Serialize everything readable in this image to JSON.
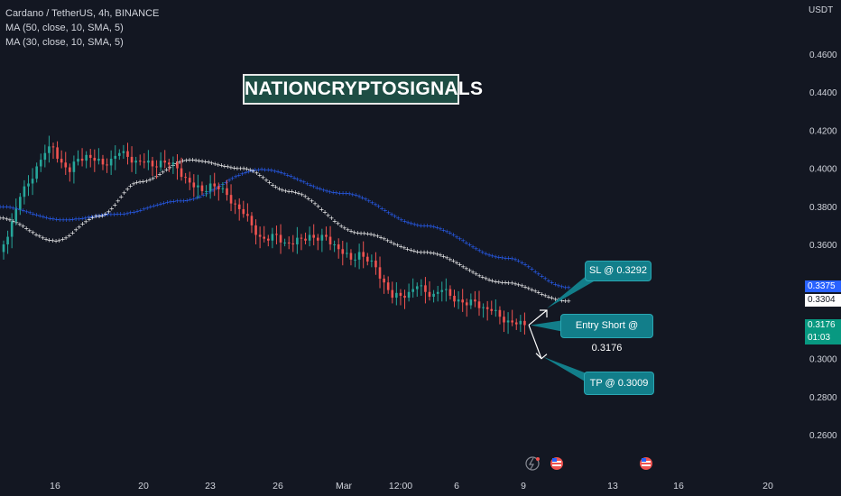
{
  "header": {
    "symbol_line": "Cardano / TetherUS, 4h, BINANCE",
    "ma1_line": "MA (50, close, 10, SMA, 5)",
    "ma2_line": "MA (30, close, 10, SMA, 5)"
  },
  "watermark": "NATIONCRYPTOSIGNALS",
  "price_unit": "USDT",
  "callouts": {
    "sl": "SL @ 0.3292",
    "entry": "Entry Short @ 0.3176",
    "tp": "TP @ 0.3009"
  },
  "badges": {
    "ma1_value": "0.3375",
    "ma2_value": "0.3304",
    "last_price": "0.3176",
    "countdown": "01:03"
  },
  "colors": {
    "background": "#131722",
    "up": "#26a69a",
    "down": "#ef5350",
    "ma_blue": "#2962ff",
    "ma_white": "#ffffff",
    "callout": "#127e8a"
  },
  "chart_data": {
    "type": "candlestick",
    "timeframe": "4h",
    "y_ticks": [
      "0.4600",
      "0.4400",
      "0.4200",
      "0.4000",
      "0.3800",
      "0.3600",
      "0.3000",
      "0.2800",
      "0.2600"
    ],
    "x_ticks": [
      "16",
      "20",
      "23",
      "26",
      "Mar",
      "12:00",
      "6",
      "9",
      "13",
      "16",
      "20"
    ],
    "ylim": [
      0.245,
      0.47
    ],
    "close_series": [
      0.36,
      0.372,
      0.385,
      0.392,
      0.401,
      0.408,
      0.411,
      0.403,
      0.398,
      0.405,
      0.407,
      0.404,
      0.402,
      0.405,
      0.408,
      0.406,
      0.404,
      0.403,
      0.401,
      0.404,
      0.402,
      0.4,
      0.395,
      0.39,
      0.388,
      0.392,
      0.389,
      0.386,
      0.381,
      0.376,
      0.37,
      0.364,
      0.362,
      0.365,
      0.361,
      0.36,
      0.363,
      0.365,
      0.362,
      0.364,
      0.36,
      0.355,
      0.352,
      0.356,
      0.351,
      0.348,
      0.34,
      0.332,
      0.333,
      0.335,
      0.338,
      0.335,
      0.334,
      0.336,
      0.333,
      0.331,
      0.328,
      0.33,
      0.327,
      0.325,
      0.322,
      0.32,
      0.318,
      0.3176
    ],
    "ma50_values": {
      "first": 0.38,
      "min": 0.373,
      "peak": 0.3995,
      "last": 0.3375
    },
    "ma30_values": {
      "first": 0.374,
      "min": 0.362,
      "peak": 0.4045,
      "last": 0.3304
    },
    "trade": {
      "entry": 0.3176,
      "stop_loss": 0.3292,
      "take_profit": 0.3009
    }
  }
}
